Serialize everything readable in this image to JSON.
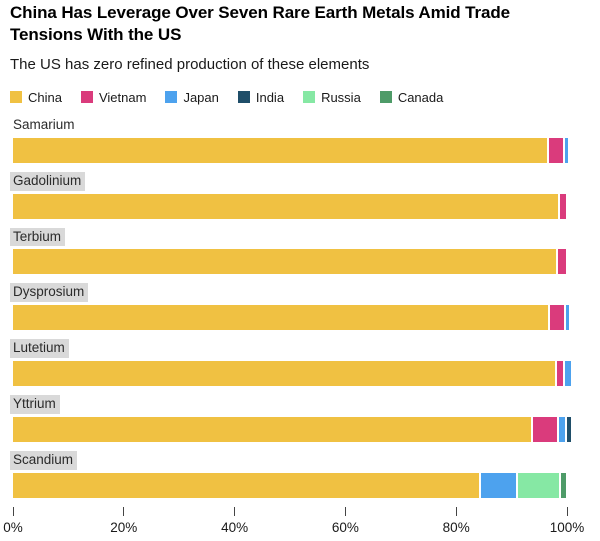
{
  "header": {
    "title": "China Has Leverage Over Seven Rare Earth Metals Amid Trade Tensions With the US",
    "subtitle": "The US has zero refined production of these elements"
  },
  "legend": {
    "items": [
      {
        "label": "China",
        "color": "#F0C142"
      },
      {
        "label": "Vietnam",
        "color": "#DA3B7C"
      },
      {
        "label": "Japan",
        "color": "#4DA2EE"
      },
      {
        "label": "India",
        "color": "#1F4E69"
      },
      {
        "label": "Russia",
        "color": "#86E8A4"
      },
      {
        "label": "Canada",
        "color": "#4E9B68"
      }
    ]
  },
  "chart_data": {
    "type": "bar",
    "orientation": "horizontal",
    "stacked": true,
    "unit": "%",
    "title": "China Has Leverage Over Seven Rare Earth Metals Amid Trade Tensions With the US",
    "subtitle": "The US has zero refined production of these elements",
    "xlabel": "",
    "ylabel": "",
    "xlim": [
      0,
      100
    ],
    "x_ticks": [
      "0%",
      "20%",
      "40%",
      "60%",
      "80%",
      "100%"
    ],
    "grid": false,
    "legend_position": "top",
    "categories": [
      "Samarium",
      "Gadolinium",
      "Terbium",
      "Dysprosium",
      "Lutetium",
      "Yttrium",
      "Scandium"
    ],
    "category_label_highlighted": [
      false,
      true,
      true,
      true,
      true,
      true,
      true
    ],
    "series": [
      {
        "name": "China",
        "color": "#F0C142",
        "values": [
          96.3,
          98.3,
          98.0,
          96.5,
          97.9,
          93.5,
          84.2
        ]
      },
      {
        "name": "Vietnam",
        "color": "#DA3B7C",
        "values": [
          2.7,
          1.2,
          1.5,
          2.6,
          1.1,
          4.4,
          0
        ]
      },
      {
        "name": "Japan",
        "color": "#4DA2EE",
        "values": [
          0.5,
          0,
          0,
          0.5,
          1.0,
          1.0,
          6.3
        ]
      },
      {
        "name": "India",
        "color": "#1F4E69",
        "values": [
          0,
          0,
          0,
          0,
          0,
          0.7,
          0
        ]
      },
      {
        "name": "Russia",
        "color": "#86E8A4",
        "values": [
          0,
          0,
          0,
          0,
          0,
          0,
          7.3
        ]
      },
      {
        "name": "Canada",
        "color": "#4E9B68",
        "values": [
          0,
          0,
          0,
          0,
          0,
          0,
          1.0
        ]
      }
    ]
  }
}
